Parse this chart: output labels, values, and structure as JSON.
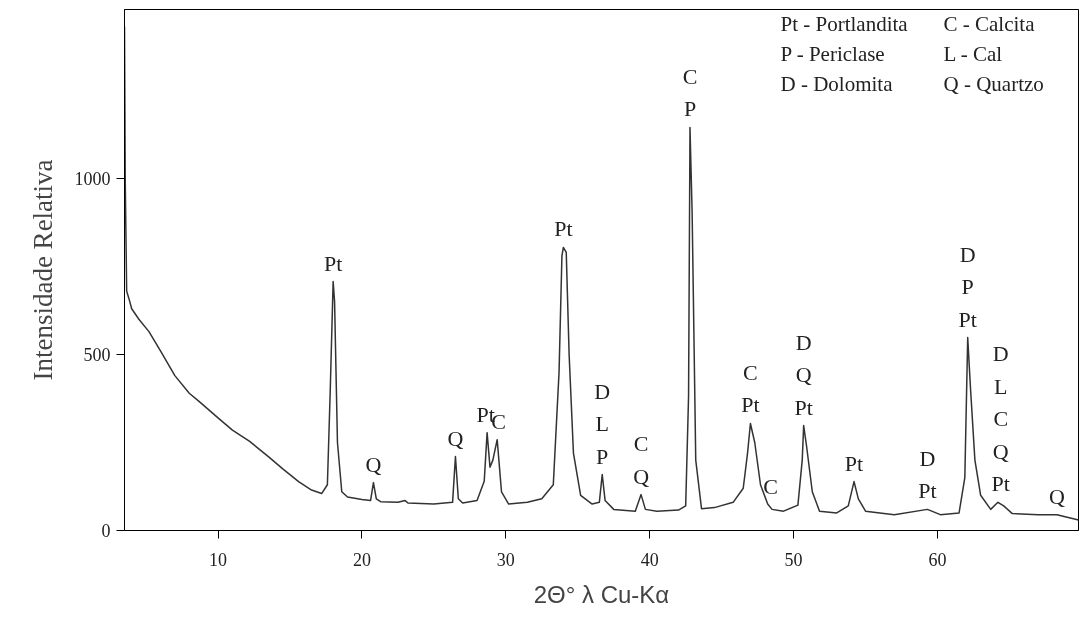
{
  "chart_data": {
    "type": "line",
    "xlabel": "2Θ° λ Cu-Kα",
    "ylabel": "Intensidade Relativa",
    "xlim": [
      3.5,
      69.8
    ],
    "ylim": [
      0,
      1480
    ],
    "xticks": [
      10,
      20,
      30,
      40,
      50,
      60
    ],
    "yticks": [
      0,
      500,
      1000
    ],
    "grid": false,
    "series": [
      {
        "color": "#333333",
        "x": [
          3.5,
          3.55,
          3.65,
          3.8,
          4.0,
          4.5,
          5.2,
          6.0,
          7.0,
          8.0,
          8.7,
          10.0,
          11.0,
          12.2,
          13.5,
          14.5,
          15.6,
          16.5,
          17.2,
          17.6,
          17.8,
          18.0,
          18.1,
          18.3,
          18.6,
          19.0,
          20.0,
          20.6,
          20.8,
          21.0,
          21.3,
          22.5,
          23.0,
          23.2,
          25.0,
          26.3,
          26.5,
          26.7,
          27.0,
          28.0,
          28.5,
          28.7,
          28.9,
          29.1,
          29.4,
          29.7,
          30.2,
          31.5,
          32.5,
          33.3,
          33.7,
          33.9,
          34.0,
          34.2,
          34.4,
          34.7,
          35.2,
          36.0,
          36.5,
          36.7,
          36.9,
          37.5,
          39.0,
          39.4,
          39.7,
          40.5,
          42.0,
          42.5,
          42.7,
          42.8,
          42.95,
          43.2,
          43.6,
          44.5,
          45.8,
          46.5,
          46.8,
          47.0,
          47.3,
          47.7,
          48.2,
          48.5,
          49.3,
          50.3,
          50.6,
          50.7,
          50.9,
          51.3,
          51.8,
          53.0,
          53.8,
          54.2,
          54.5,
          55.0,
          57.0,
          59.3,
          60.2,
          61.5,
          61.9,
          62.1,
          62.3,
          62.6,
          63.0,
          63.7,
          64.2,
          64.6,
          65.2,
          67.0,
          68.3,
          68.8,
          69.8
        ],
        "values": [
          1432,
          1000,
          680,
          660,
          630,
          600,
          565,
          510,
          440,
          390,
          366,
          320,
          285,
          253,
          210,
          175,
          139,
          115,
          105,
          130,
          400,
          707,
          650,
          250,
          110,
          95,
          88,
          85,
          136,
          90,
          82,
          80,
          85,
          78,
          75,
          80,
          210,
          90,
          78,
          85,
          140,
          278,
          180,
          200,
          258,
          110,
          75,
          80,
          90,
          130,
          450,
          780,
          804,
          790,
          500,
          220,
          100,
          75,
          80,
          159,
          85,
          60,
          55,
          102,
          60,
          55,
          58,
          70,
          380,
          1145,
          900,
          200,
          62,
          65,
          80,
          120,
          220,
          304,
          250,
          130,
          75,
          60,
          55,
          72,
          200,
          298,
          240,
          110,
          55,
          50,
          70,
          139,
          90,
          55,
          45,
          60,
          45,
          50,
          150,
          548,
          400,
          200,
          100,
          60,
          80,
          70,
          48,
          45,
          45,
          40,
          30
        ]
      }
    ],
    "annotations": [
      {
        "text": "Pt",
        "x": 18.0,
        "y": 707
      },
      {
        "text": "Q",
        "x": 20.8,
        "y": 136
      },
      {
        "text": "Q",
        "x": 26.5,
        "y": 210
      },
      {
        "text": "Pt",
        "x": 28.6,
        "y": 278
      },
      {
        "text": "C",
        "x": 29.5,
        "y": 258
      },
      {
        "text": "Pt",
        "x": 34.0,
        "y": 804
      },
      {
        "text": "D\nL\nP",
        "x": 36.7,
        "y": 159
      },
      {
        "text": "C\nQ",
        "x": 39.4,
        "y": 102
      },
      {
        "text": "C\nP",
        "x": 42.8,
        "y": 1145
      },
      {
        "text": "C\nPt",
        "x": 47.0,
        "y": 304
      },
      {
        "text": "C",
        "x": 48.4,
        "y": 72
      },
      {
        "text": "D\nQ\nPt",
        "x": 50.7,
        "y": 298
      },
      {
        "text": "Pt",
        "x": 54.2,
        "y": 139
      },
      {
        "text": "D\nPt",
        "x": 59.3,
        "y": 60
      },
      {
        "text": "D\nP\nPt",
        "x": 62.1,
        "y": 548
      },
      {
        "text": "D\nL\nC\nQ\nPt",
        "x": 64.4,
        "y": 80
      },
      {
        "text": "Q",
        "x": 68.3,
        "y": 45
      },
      "Pt - Portlandita",
      "P - Periclase",
      "D - Dolomita",
      "C - Calcita",
      "L - Cal",
      "Q - Quartzo"
    ]
  }
}
